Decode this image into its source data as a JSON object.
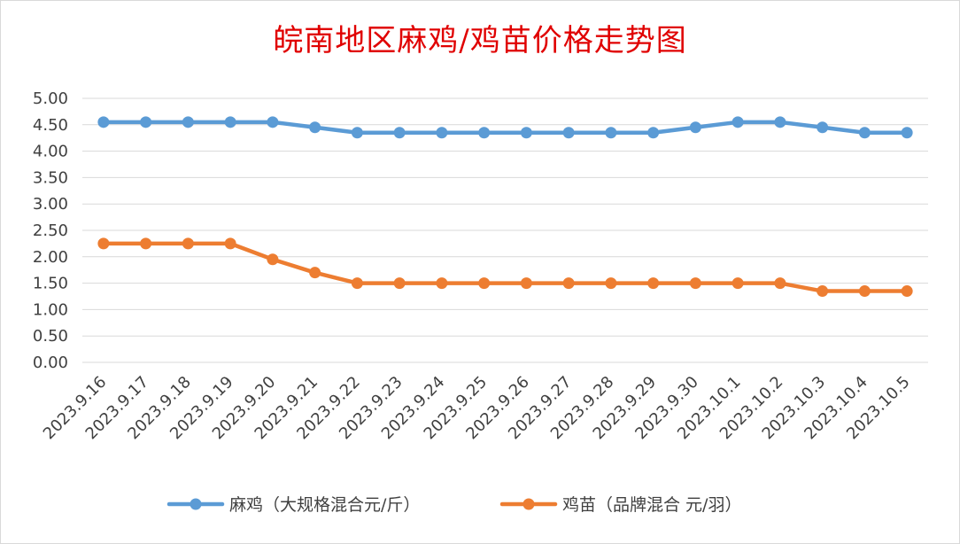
{
  "chart_data": {
    "type": "line",
    "title": "皖南地区麻鸡/鸡苗价格走势图",
    "xlabel": "",
    "ylabel": "",
    "ylim": [
      0,
      5
    ],
    "yticks": [
      "0.00",
      "0.50",
      "1.00",
      "1.50",
      "2.00",
      "2.50",
      "3.00",
      "3.50",
      "4.00",
      "4.50",
      "5.00"
    ],
    "grid": true,
    "legend_position": "bottom",
    "categories": [
      "2023.9.16",
      "2023.9.17",
      "2023.9.18",
      "2023.9.19",
      "2023.9.20",
      "2023.9.21",
      "2023.9.22",
      "2023.9.23",
      "2023.9.24",
      "2023.9.25",
      "2023.9.26",
      "2023.9.27",
      "2023.9.28",
      "2023.9.29",
      "2023.9.30",
      "2023.10.1",
      "2023.10.2",
      "2023.10.3",
      "2023.10.4",
      "2023.10.5"
    ],
    "series": [
      {
        "name": "麻鸡（大规格混合元/斤）",
        "color": "#5b9bd5",
        "values": [
          4.55,
          4.55,
          4.55,
          4.55,
          4.55,
          4.45,
          4.35,
          4.35,
          4.35,
          4.35,
          4.35,
          4.35,
          4.35,
          4.35,
          4.45,
          4.55,
          4.55,
          4.45,
          4.35,
          4.35
        ]
      },
      {
        "name": "鸡苗（品牌混合 元/羽）",
        "color": "#ed7d31",
        "values": [
          2.25,
          2.25,
          2.25,
          2.25,
          1.95,
          1.7,
          1.5,
          1.5,
          1.5,
          1.5,
          1.5,
          1.5,
          1.5,
          1.5,
          1.5,
          1.5,
          1.5,
          1.35,
          1.35,
          1.35
        ]
      }
    ]
  }
}
